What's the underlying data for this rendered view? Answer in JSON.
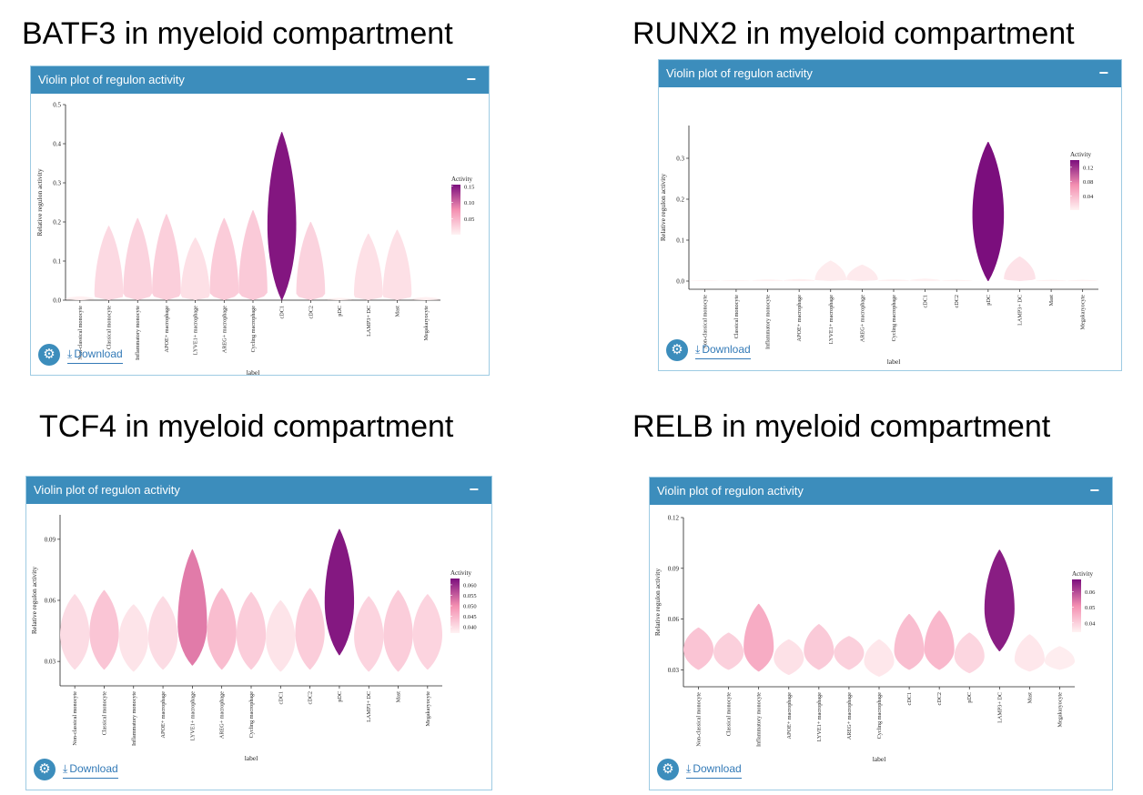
{
  "panels": [
    {
      "title": "BATF3 in myeloid compartment",
      "box_title": "Violin plot of regulon activity",
      "collapse_label": "−",
      "download_label": "Download",
      "icons": {
        "settings": "gear-icon",
        "download": "download-icon"
      }
    },
    {
      "title": "RUNX2 in myeloid compartment",
      "box_title": "Violin plot of regulon activity",
      "collapse_label": "−",
      "download_label": "Download",
      "icons": {
        "settings": "gear-icon",
        "download": "download-icon"
      }
    },
    {
      "title": "TCF4 in myeloid compartment",
      "box_title": "Violin plot of regulon activity",
      "collapse_label": "−",
      "download_label": "Download",
      "icons": {
        "settings": "gear-icon",
        "download": "download-icon"
      }
    },
    {
      "title": "RELB in myeloid compartment",
      "box_title": "Violin plot of regulon activity",
      "collapse_label": "−",
      "download_label": "Download",
      "icons": {
        "settings": "gear-icon",
        "download": "download-icon"
      }
    }
  ],
  "chart_data": [
    {
      "type": "violin",
      "title": "BATF3 in myeloid compartment",
      "xlabel": "label",
      "ylabel": "Relative regulon activity",
      "ylim": [
        0,
        0.5
      ],
      "yticks": [
        "0.0",
        "0.1",
        "0.2",
        "0.3",
        "0.4",
        "0.5"
      ],
      "categories": [
        "Non-classical monocyte",
        "Classical monocyte",
        "Inflammatory monocyte",
        "APOE+ macrophage",
        "LYVE1+ macrophage",
        "AREG+ macrophage",
        "Cycling macrophage",
        "cDC1",
        "cDC2",
        "pDC",
        "LAMP3+ DC",
        "Mast",
        "Megakaryocyte"
      ],
      "violins": [
        {
          "min": 0,
          "max": 0.01,
          "center": 0.003,
          "activity": 0.002
        },
        {
          "min": 0,
          "max": 0.19,
          "center": 0.01,
          "activity": 0.02
        },
        {
          "min": 0,
          "max": 0.21,
          "center": 0.015,
          "activity": 0.025
        },
        {
          "min": 0,
          "max": 0.22,
          "center": 0.015,
          "activity": 0.028
        },
        {
          "min": 0,
          "max": 0.16,
          "center": 0.01,
          "activity": 0.015
        },
        {
          "min": 0,
          "max": 0.21,
          "center": 0.02,
          "activity": 0.03
        },
        {
          "min": 0,
          "max": 0.23,
          "center": 0.02,
          "activity": 0.032
        },
        {
          "min": 0,
          "max": 0.43,
          "center": 0.19,
          "activity": 0.15
        },
        {
          "min": 0,
          "max": 0.2,
          "center": 0.015,
          "activity": 0.025
        },
        {
          "min": 0,
          "max": 0.006,
          "center": 0.002,
          "activity": 0.001
        },
        {
          "min": 0,
          "max": 0.17,
          "center": 0.01,
          "activity": 0.015
        },
        {
          "min": 0,
          "max": 0.18,
          "center": 0.01,
          "activity": 0.015
        },
        {
          "min": 0,
          "max": 0.008,
          "center": 0.002,
          "activity": 0.002
        }
      ],
      "legend": {
        "title": "Activity",
        "ticks": [
          "0.15",
          "0.10",
          "0.05"
        ],
        "tick_values": [
          0.15,
          0.1,
          0.05
        ],
        "range": [
          0.0,
          0.155
        ],
        "position": "right"
      },
      "colors": {
        "low": "#fff3f3",
        "mid": "#f48fb1",
        "high": "#7b0e7d"
      }
    },
    {
      "type": "violin",
      "title": "RUNX2 in myeloid compartment",
      "xlabel": "label",
      "ylabel": "Relative regulon activity",
      "ylim": [
        -0.02,
        0.38
      ],
      "yticks": [
        "0.0",
        "0.1",
        "0.2",
        "0.3"
      ],
      "ytick_values": [
        0,
        0.1,
        0.2,
        0.3
      ],
      "categories": [
        "Non-classical monocyte",
        "Classical monocyte",
        "Inflammatory monocyte",
        "APOE+ macrophage",
        "LYVE1+ macrophage",
        "AREG+ macrophage",
        "Cycling macrophage",
        "cDC1",
        "cDC2",
        "pDC",
        "LAMP3+ DC",
        "Mast",
        "Megakaryocyte"
      ],
      "violins": [
        {
          "min": 0,
          "max": 0.002,
          "center": 0.001,
          "activity": 0.001
        },
        {
          "min": 0,
          "max": 0.002,
          "center": 0.001,
          "activity": 0.001
        },
        {
          "min": 0,
          "max": 0.004,
          "center": 0.001,
          "activity": 0.002
        },
        {
          "min": 0,
          "max": 0.005,
          "center": 0.001,
          "activity": 0.003
        },
        {
          "min": 0,
          "max": 0.05,
          "center": 0.002,
          "activity": 0.005
        },
        {
          "min": 0,
          "max": 0.04,
          "center": 0.003,
          "activity": 0.006
        },
        {
          "min": 0,
          "max": 0.004,
          "center": 0.001,
          "activity": 0.002
        },
        {
          "min": 0,
          "max": 0.006,
          "center": 0.001,
          "activity": 0.002
        },
        {
          "min": 0,
          "max": 0.003,
          "center": 0.001,
          "activity": 0.001
        },
        {
          "min": 0,
          "max": 0.34,
          "center": 0.16,
          "activity": 0.14
        },
        {
          "min": 0,
          "max": 0.06,
          "center": 0.005,
          "activity": 0.012
        },
        {
          "min": 0,
          "max": 0.003,
          "center": 0.001,
          "activity": 0.001
        },
        {
          "min": 0,
          "max": 0.003,
          "center": 0.001,
          "activity": 0.001
        }
      ],
      "legend": {
        "title": "Activity",
        "ticks": [
          "0.12",
          "0.08",
          "0.04"
        ],
        "tick_values": [
          0.12,
          0.08,
          0.04
        ],
        "range": [
          0.0,
          0.14
        ],
        "position": "right"
      },
      "colors": {
        "low": "#fff3f3",
        "mid": "#f48fb1",
        "high": "#7b0e7d"
      }
    },
    {
      "type": "violin",
      "title": "TCF4 in myeloid compartment",
      "xlabel": "label",
      "ylabel": "Relative regulon activity",
      "ylim": [
        0.018,
        0.102
      ],
      "yticks": [
        "0.03",
        "0.06",
        "0.09"
      ],
      "ytick_values": [
        0.03,
        0.06,
        0.09
      ],
      "categories": [
        "Non-classical monocyte",
        "Classical monocyte",
        "Inflammatory monocyte",
        "APOE+ macrophage",
        "LYVE1+ macrophage",
        "AREG+ macrophage",
        "Cycling macrophage",
        "cDC1",
        "cDC2",
        "pDC",
        "LAMP3+ DC",
        "Mast",
        "Megakaryocyte"
      ],
      "violins": [
        {
          "min": 0.026,
          "max": 0.063,
          "center": 0.043,
          "activity": 0.04
        },
        {
          "min": 0.026,
          "max": 0.065,
          "center": 0.044,
          "activity": 0.043
        },
        {
          "min": 0.025,
          "max": 0.058,
          "center": 0.041,
          "activity": 0.039
        },
        {
          "min": 0.026,
          "max": 0.062,
          "center": 0.042,
          "activity": 0.04
        },
        {
          "min": 0.028,
          "max": 0.085,
          "center": 0.048,
          "activity": 0.052
        },
        {
          "min": 0.026,
          "max": 0.066,
          "center": 0.044,
          "activity": 0.044
        },
        {
          "min": 0.026,
          "max": 0.064,
          "center": 0.043,
          "activity": 0.042
        },
        {
          "min": 0.025,
          "max": 0.06,
          "center": 0.041,
          "activity": 0.039
        },
        {
          "min": 0.026,
          "max": 0.066,
          "center": 0.044,
          "activity": 0.042
        },
        {
          "min": 0.033,
          "max": 0.095,
          "center": 0.059,
          "activity": 0.062
        },
        {
          "min": 0.025,
          "max": 0.062,
          "center": 0.042,
          "activity": 0.041
        },
        {
          "min": 0.025,
          "max": 0.065,
          "center": 0.043,
          "activity": 0.042
        },
        {
          "min": 0.026,
          "max": 0.063,
          "center": 0.043,
          "activity": 0.041
        }
      ],
      "legend": {
        "title": "Activity",
        "ticks": [
          "0.060",
          "0.055",
          "0.050",
          "0.045",
          "0.040"
        ],
        "tick_values": [
          0.06,
          0.055,
          0.05,
          0.045,
          0.04
        ],
        "range": [
          0.037,
          0.063
        ],
        "position": "right"
      },
      "colors": {
        "low": "#fff3f3",
        "mid": "#f48fb1",
        "high": "#7b0e7d"
      }
    },
    {
      "type": "violin",
      "title": "RELB in myeloid compartment",
      "xlabel": "label",
      "ylabel": "Relative regulon activity",
      "ylim": [
        0.02,
        0.12
      ],
      "yticks": [
        "0.03",
        "0.06",
        "0.09",
        "0.12"
      ],
      "ytick_values": [
        0.03,
        0.06,
        0.09,
        0.12
      ],
      "categories": [
        "Non-classical monocyte",
        "Classical monocyte",
        "Inflammatory monocyte",
        "APOE+ macrophage",
        "LYVE1+ macrophage",
        "AREG+ macrophage",
        "Cycling macrophage",
        "cDC1",
        "cDC2",
        "pDC",
        "LAMP3+ DC",
        "Mast",
        "Megakaryocyte"
      ],
      "violins": [
        {
          "min": 0.03,
          "max": 0.055,
          "center": 0.042,
          "activity": 0.042
        },
        {
          "min": 0.03,
          "max": 0.052,
          "center": 0.04,
          "activity": 0.04
        },
        {
          "min": 0.029,
          "max": 0.069,
          "center": 0.043,
          "activity": 0.046
        },
        {
          "min": 0.027,
          "max": 0.048,
          "center": 0.037,
          "activity": 0.037
        },
        {
          "min": 0.03,
          "max": 0.057,
          "center": 0.041,
          "activity": 0.041
        },
        {
          "min": 0.03,
          "max": 0.05,
          "center": 0.04,
          "activity": 0.04
        },
        {
          "min": 0.026,
          "max": 0.048,
          "center": 0.035,
          "activity": 0.036
        },
        {
          "min": 0.03,
          "max": 0.063,
          "center": 0.041,
          "activity": 0.043
        },
        {
          "min": 0.03,
          "max": 0.065,
          "center": 0.042,
          "activity": 0.044
        },
        {
          "min": 0.028,
          "max": 0.052,
          "center": 0.038,
          "activity": 0.039
        },
        {
          "min": 0.041,
          "max": 0.101,
          "center": 0.066,
          "activity": 0.066
        },
        {
          "min": 0.029,
          "max": 0.051,
          "center": 0.036,
          "activity": 0.036
        },
        {
          "min": 0.03,
          "max": 0.044,
          "center": 0.035,
          "activity": 0.035
        }
      ],
      "legend": {
        "title": "Activity",
        "ticks": [
          "0.06",
          "0.05",
          "0.04"
        ],
        "tick_values": [
          0.06,
          0.05,
          0.04
        ],
        "range": [
          0.034,
          0.068
        ],
        "position": "right"
      },
      "colors": {
        "low": "#fff3f3",
        "mid": "#f48fb1",
        "high": "#7b0e7d"
      }
    }
  ]
}
